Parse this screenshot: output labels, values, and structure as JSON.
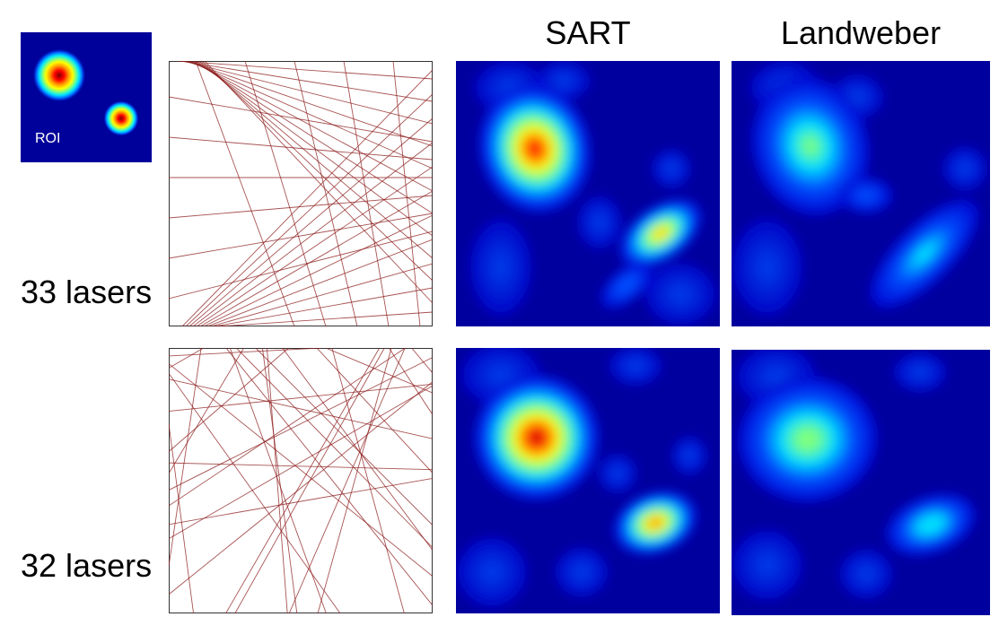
{
  "columns": {
    "sart": "SART",
    "landweber": "Landweber"
  },
  "rows": [
    {
      "label": "33 lasers"
    },
    {
      "label": "32 lasers"
    }
  ],
  "roi": {
    "label": "ROI"
  },
  "colormap": {
    "background": "#0a00a0",
    "stops": [
      "#00007f",
      "#0000ff",
      "#00a0ff",
      "#00ffff",
      "#7fff7f",
      "#ffff00",
      "#ff7f00",
      "#ff0000",
      "#7f0000"
    ]
  },
  "laser_color": "#8b1a1a"
}
